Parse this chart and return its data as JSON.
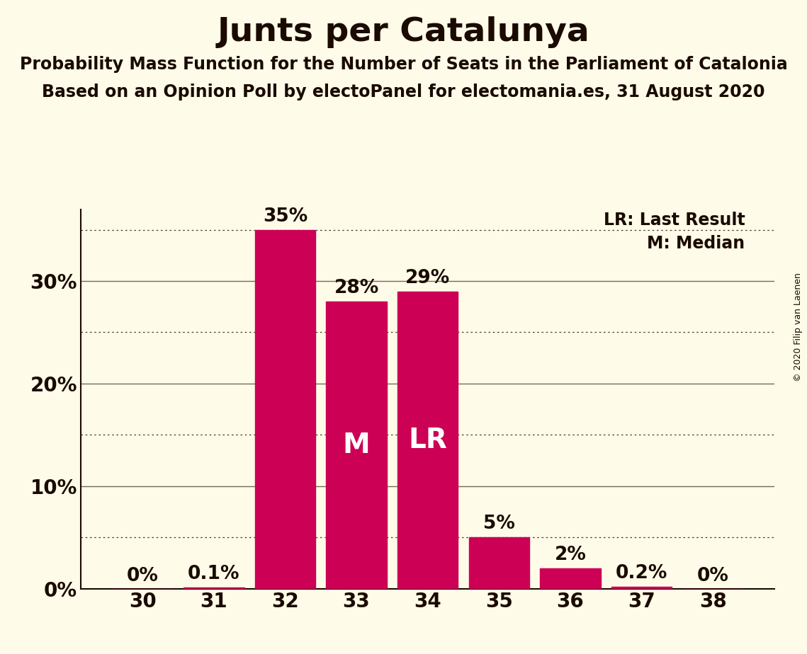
{
  "title": "Junts per Catalunya",
  "subtitle1": "Probability Mass Function for the Number of Seats in the Parliament of Catalonia",
  "subtitle2": "Based on an Opinion Poll by electoPanel for electomania.es, 31 August 2020",
  "copyright": "© 2020 Filip van Laenen",
  "categories": [
    30,
    31,
    32,
    33,
    34,
    35,
    36,
    37,
    38
  ],
  "values": [
    0.0,
    0.1,
    35.0,
    28.0,
    29.0,
    5.0,
    2.0,
    0.2,
    0.0
  ],
  "labels": [
    "0%",
    "0.1%",
    "35%",
    "28%",
    "29%",
    "5%",
    "2%",
    "0.2%",
    "0%"
  ],
  "bar_color": "#cc0055",
  "background_color": "#fefbe8",
  "text_color": "#1a0a00",
  "median_seat": 33,
  "last_result_seat": 34,
  "median_label": "M",
  "last_result_label": "LR",
  "legend_lr": "LR: Last Result",
  "legend_m": "M: Median",
  "ylim": [
    0,
    37
  ],
  "yticks": [
    0,
    10,
    20,
    30
  ],
  "ytick_labels": [
    "0%",
    "10%",
    "20%",
    "30%"
  ],
  "dotted_gridlines": [
    5,
    15,
    25,
    35
  ],
  "solid_gridlines": [
    10,
    20,
    30
  ],
  "title_fontsize": 34,
  "subtitle_fontsize": 17,
  "axis_label_fontsize": 20,
  "bar_label_fontsize": 19,
  "inside_label_fontsize": 28,
  "legend_fontsize": 17,
  "copyright_fontsize": 9
}
